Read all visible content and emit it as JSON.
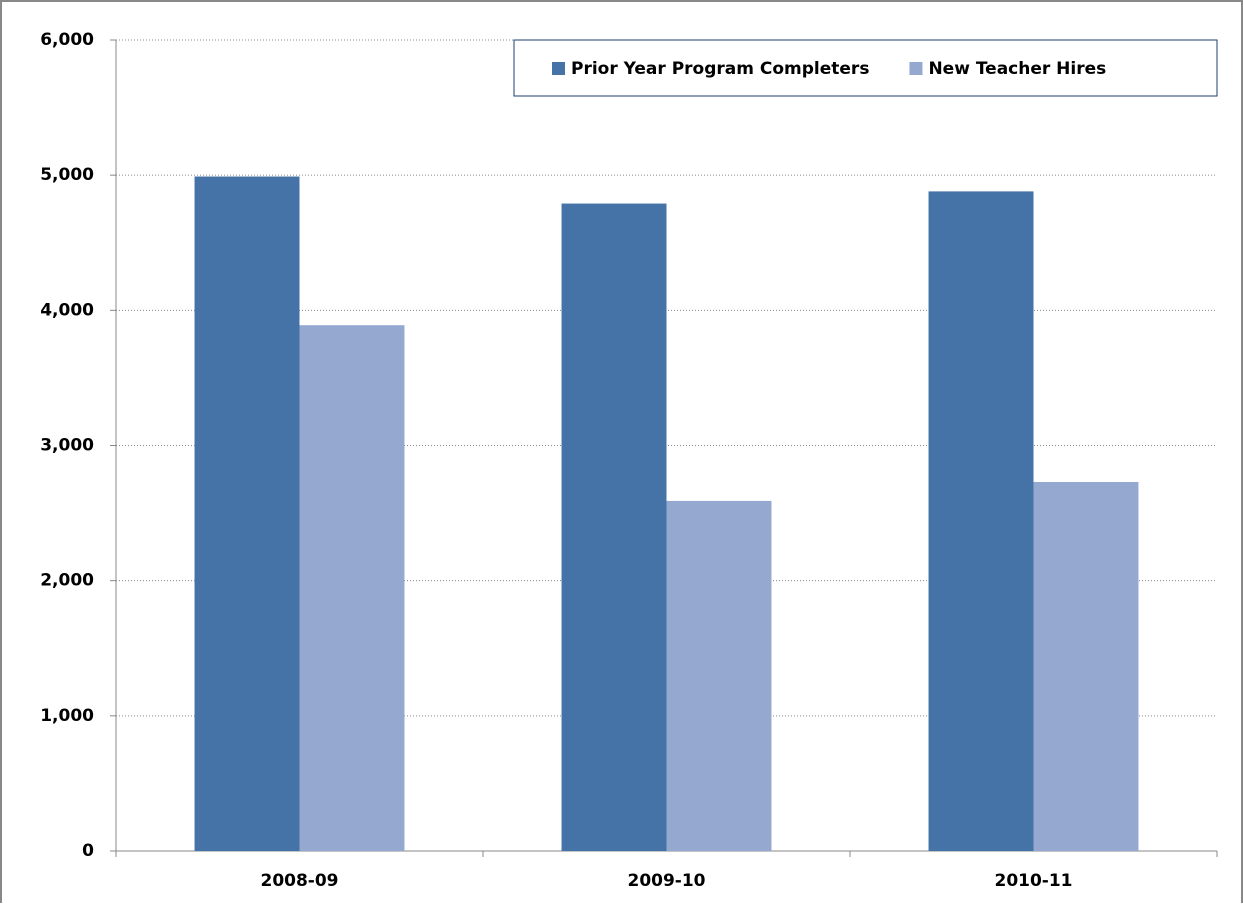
{
  "chart_data": {
    "type": "bar",
    "categories": [
      "2008-09",
      "2009-10",
      "2010-11"
    ],
    "series": [
      {
        "name": "Prior Year Program Completers",
        "color": "#4673a7",
        "values": [
          4990,
          4790,
          4880
        ]
      },
      {
        "name": "New Teacher Hires",
        "color": "#95a9d0",
        "values": [
          3890,
          2590,
          2730
        ]
      }
    ],
    "ylim": [
      0,
      6000
    ],
    "yticks": [
      0,
      {
        "value": 1000,
        "label": "1,000"
      },
      {
        "value": 2000,
        "label": "2,000"
      },
      {
        "value": 3000,
        "label": "3,000"
      },
      {
        "value": 4000,
        "label": "4,000"
      },
      {
        "value": 5000,
        "label": "5,000"
      },
      {
        "value": 6000,
        "label": "6,000"
      }
    ],
    "grid": true,
    "legend": "top-right"
  }
}
